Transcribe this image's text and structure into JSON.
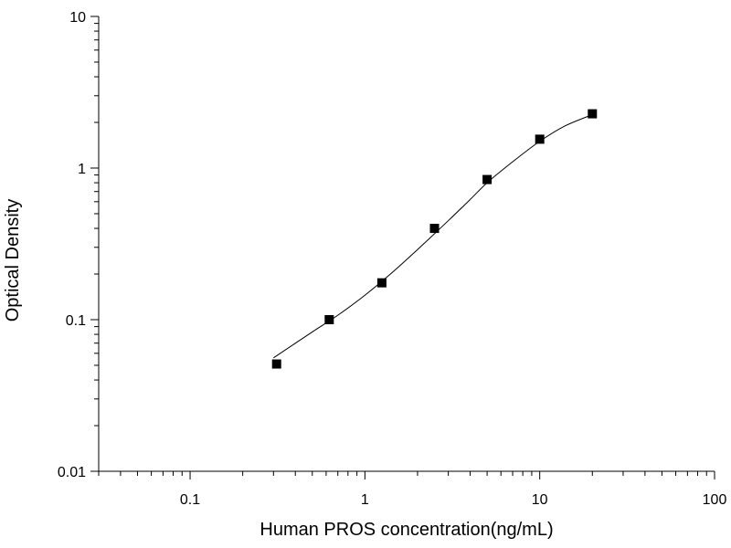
{
  "chart_data": {
    "type": "scatter",
    "title": "",
    "xlabel": "Human PROS concentration(ng/mL)",
    "ylabel": "Optical Density",
    "x_scale": "log",
    "y_scale": "log",
    "xlim": [
      0.03,
      100
    ],
    "ylim": [
      0.01,
      10
    ],
    "x_ticks": [
      {
        "value": 0.1,
        "label": "0.1"
      },
      {
        "value": 1,
        "label": "1"
      },
      {
        "value": 10,
        "label": "10"
      },
      {
        "value": 100,
        "label": "100"
      }
    ],
    "y_ticks": [
      {
        "value": 0.01,
        "label": "0.01"
      },
      {
        "value": 0.1,
        "label": "0.1"
      },
      {
        "value": 1,
        "label": "1"
      },
      {
        "value": 10,
        "label": "10"
      }
    ],
    "grid": false,
    "legend": "none",
    "series": [
      {
        "x": [
          0.3125,
          0.625,
          1.25,
          2.5,
          5,
          10,
          20
        ],
        "y": [
          0.051,
          0.1,
          0.175,
          0.4,
          0.84,
          1.55,
          2.28
        ]
      }
    ],
    "fit_curve": {
      "x": [
        0.3,
        0.5,
        0.7,
        1.0,
        1.4,
        2.0,
        3.0,
        4.0,
        5.0,
        7.0,
        10.0,
        14.0,
        20.0
      ],
      "y": [
        0.056,
        0.083,
        0.107,
        0.145,
        0.2,
        0.29,
        0.45,
        0.62,
        0.8,
        1.1,
        1.5,
        1.9,
        2.25
      ]
    },
    "colors": {
      "marker": "#000000",
      "curve": "#000000",
      "axis": "#000000"
    }
  }
}
